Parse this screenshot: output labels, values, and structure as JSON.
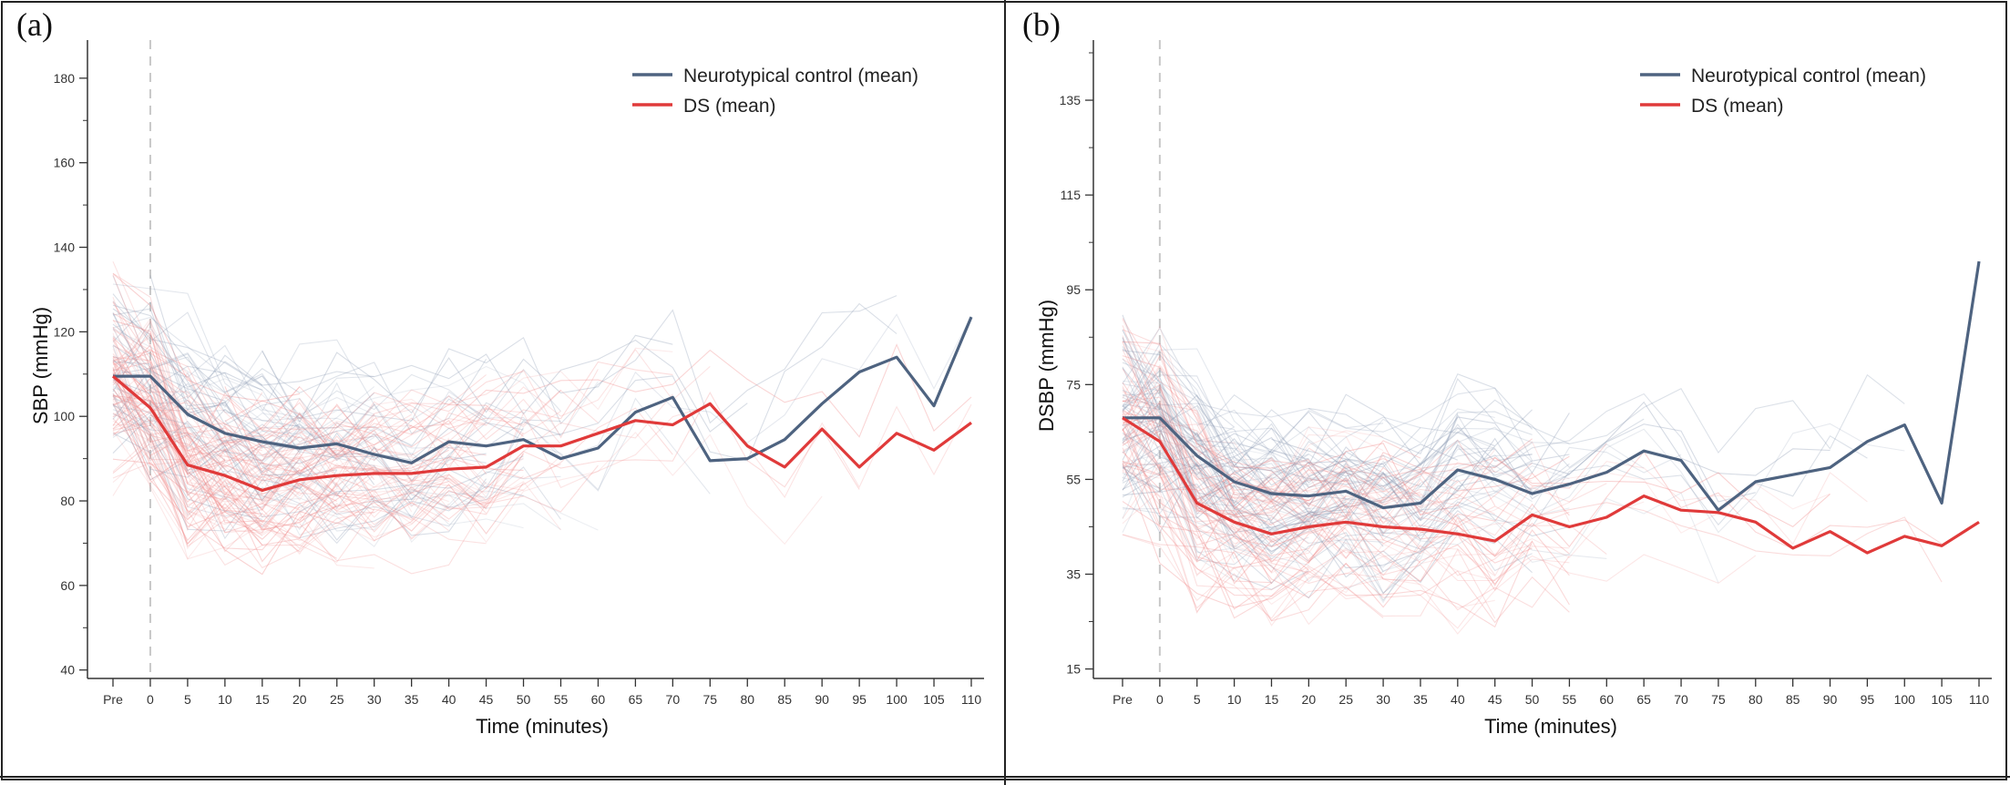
{
  "colors": {
    "control": "#4e6380",
    "ds": "#e03a3a",
    "control_light": "#8c9bb4",
    "ds_light": "#f08a8a"
  },
  "x_ticks": [
    "Pre",
    "0",
    "5",
    "10",
    "15",
    "20",
    "25",
    "30",
    "35",
    "40",
    "45",
    "50",
    "55",
    "60",
    "65",
    "70",
    "75",
    "80",
    "85",
    "90",
    "95",
    "100",
    "105",
    "110"
  ],
  "chart_data": [
    {
      "panel_label": "(a)",
      "type": "line",
      "xlabel": "Time (minutes)",
      "ylabel": "SBP (mmHg)",
      "ylim": [
        38,
        186
      ],
      "y_ticks": [
        40,
        60,
        80,
        100,
        120,
        140,
        160,
        180
      ],
      "x_categories": [
        "Pre",
        "0",
        "5",
        "10",
        "15",
        "20",
        "25",
        "30",
        "35",
        "40",
        "45",
        "50",
        "55",
        "60",
        "65",
        "70",
        "75",
        "80",
        "85",
        "90",
        "95",
        "100",
        "105",
        "110"
      ],
      "legend_position": "top-right",
      "series": [
        {
          "name": "Neurotypical control (mean)",
          "values": [
            109.5,
            109.5,
            100.5,
            96,
            94,
            92.5,
            93.5,
            91,
            89,
            94,
            93,
            94.5,
            90,
            92.5,
            101,
            104.5,
            89.5,
            90,
            94.5,
            103,
            110.5,
            114,
            102.5,
            123.5
          ]
        },
        {
          "name": "DS (mean)",
          "values": [
            109.5,
            102,
            88.5,
            86,
            82.5,
            85,
            86,
            86.5,
            86.5,
            87.5,
            88,
            93,
            93,
            96,
            99,
            98,
            103,
            93,
            88,
            97,
            88,
            96,
            92,
            98.5
          ]
        }
      ]
    },
    {
      "panel_label": "(b)",
      "type": "line",
      "xlabel": "Time (minutes)",
      "ylabel": "DSBP (mmHg)",
      "ylim": [
        13,
        145
      ],
      "y_ticks": [
        15,
        35,
        55,
        75,
        95,
        115,
        135
      ],
      "x_categories": [
        "Pre",
        "0",
        "5",
        "10",
        "15",
        "20",
        "25",
        "30",
        "35",
        "40",
        "45",
        "50",
        "55",
        "60",
        "65",
        "70",
        "75",
        "80",
        "85",
        "90",
        "95",
        "100",
        "105",
        "110"
      ],
      "legend_position": "top-right",
      "series": [
        {
          "name": "Neurotypical control (mean)",
          "values": [
            68,
            68,
            60,
            54.5,
            52,
            51.5,
            52.5,
            49,
            50,
            57,
            55,
            52,
            54,
            56.5,
            61,
            59,
            48.5,
            54.5,
            56,
            57.5,
            63,
            66.5,
            50,
            101
          ]
        },
        {
          "name": "DS (mean)",
          "values": [
            68,
            63,
            50,
            46,
            43.5,
            45,
            46,
            45,
            44.5,
            43.5,
            42,
            47.5,
            45,
            47,
            51.5,
            48.5,
            48,
            46,
            40.5,
            44,
            39.5,
            43,
            41,
            46
          ]
        }
      ]
    }
  ]
}
